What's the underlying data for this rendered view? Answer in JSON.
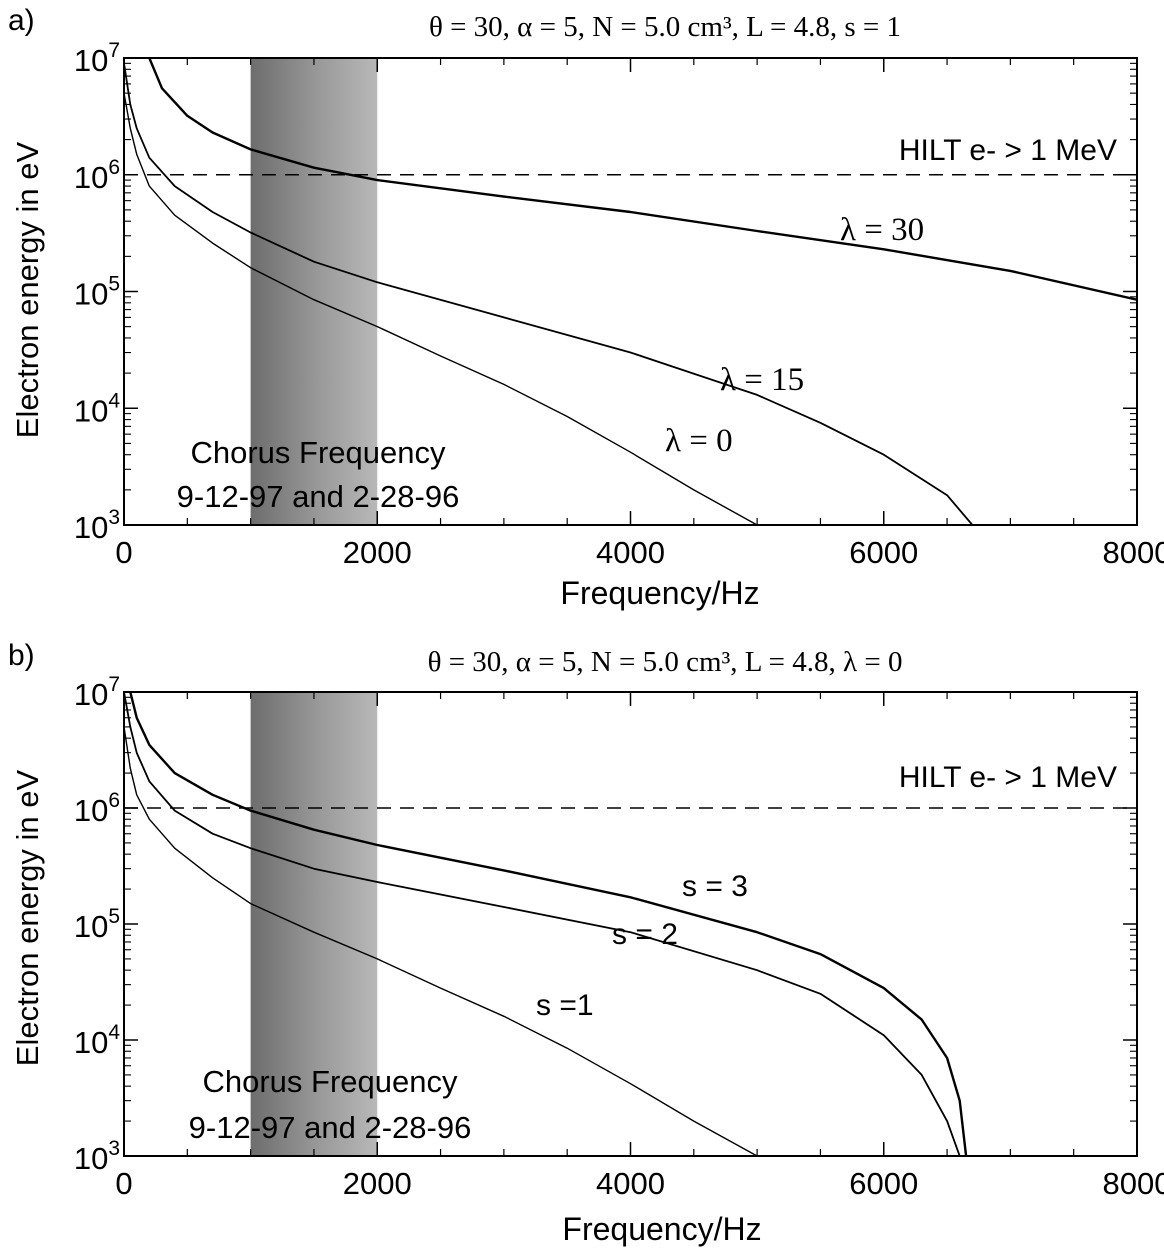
{
  "chart_data": [
    {
      "panel_label": "a)",
      "type": "line",
      "title": "θ = 30, α = 5, N = 5.0 cm³, L = 4.8, s = 1",
      "xlabel": "Frequency/Hz",
      "ylabel": "Electron energy in eV",
      "xlim": [
        0,
        8000
      ],
      "ylim": [
        1000,
        10000000
      ],
      "yscale": "log",
      "xticks": [
        "0",
        "2000",
        "4000",
        "6000",
        "8000"
      ],
      "yticks": [
        {
          "base": "10",
          "exp": "3"
        },
        {
          "base": "10",
          "exp": "4"
        },
        {
          "base": "10",
          "exp": "5"
        },
        {
          "base": "10",
          "exp": "6"
        },
        {
          "base": "10",
          "exp": "7"
        }
      ],
      "shaded_band": {
        "x": [
          1000,
          2000
        ],
        "label": [
          "Chorus Frequency",
          "9-12-97 and 2-28-96"
        ]
      },
      "reference_line": {
        "y": 1000000,
        "label": "HILT e- > 1 MeV"
      },
      "series": [
        {
          "name": "λ = 0",
          "x": [
            0,
            50,
            100,
            200,
            400,
            700,
            1000,
            1500,
            2000,
            2500,
            3000,
            3500,
            4000,
            4500,
            5000
          ],
          "y": [
            5000000,
            2500000,
            1500000,
            800000,
            450000,
            260000,
            160000,
            85000,
            50000,
            28000,
            16000,
            8500,
            4200,
            2000,
            1000
          ]
        },
        {
          "name": "λ = 15",
          "x": [
            0,
            50,
            100,
            200,
            400,
            700,
            1000,
            1500,
            2000,
            3000,
            4000,
            5000,
            5500,
            6000,
            6500,
            6700
          ],
          "y": [
            9000000,
            4000000,
            2500000,
            1400000,
            800000,
            480000,
            320000,
            180000,
            120000,
            60000,
            30000,
            13000,
            7500,
            4000,
            1800,
            1000
          ]
        },
        {
          "name": "λ = 30",
          "x": [
            200,
            300,
            500,
            700,
            1000,
            1500,
            2000,
            3000,
            4000,
            5000,
            6000,
            7000,
            8000
          ],
          "y": [
            10000000,
            5500000,
            3200000,
            2300000,
            1650000,
            1150000,
            900000,
            650000,
            480000,
            330000,
            230000,
            150000,
            85000
          ]
        }
      ],
      "annotations": [
        "λ = 30",
        "λ = 15",
        "λ = 0"
      ]
    },
    {
      "panel_label": "b)",
      "type": "line",
      "title": "θ = 30, α = 5, N = 5.0 cm³, L = 4.8, λ = 0",
      "xlabel": "Frequency/Hz",
      "ylabel": "Electron energy in eV",
      "xlim": [
        0,
        8000
      ],
      "ylim": [
        1000,
        10000000
      ],
      "yscale": "log",
      "xticks": [
        "0",
        "2000",
        "4000",
        "6000",
        "8000"
      ],
      "yticks": [
        {
          "base": "10",
          "exp": "3"
        },
        {
          "base": "10",
          "exp": "4"
        },
        {
          "base": "10",
          "exp": "5"
        },
        {
          "base": "10",
          "exp": "6"
        },
        {
          "base": "10",
          "exp": "7"
        }
      ],
      "shaded_band": {
        "x": [
          1000,
          2000
        ],
        "label": [
          "Chorus Frequency",
          "9-12-97 and 2-28-96"
        ]
      },
      "reference_line": {
        "y": 1000000,
        "label": "HILT e- > 1 MeV"
      },
      "series": [
        {
          "name": "s =1",
          "x": [
            0,
            50,
            100,
            200,
            400,
            700,
            1000,
            1500,
            2000,
            2500,
            3000,
            3500,
            4000,
            4500,
            5000
          ],
          "y": [
            5000000,
            2200000,
            1300000,
            800000,
            450000,
            250000,
            150000,
            85000,
            50000,
            28000,
            16000,
            8500,
            4200,
            2000,
            1000
          ]
        },
        {
          "name": "s = 2",
          "x": [
            0,
            50,
            100,
            200,
            400,
            700,
            1000,
            1500,
            2000,
            3000,
            4000,
            5000,
            5500,
            6000,
            6300,
            6500,
            6600
          ],
          "y": [
            10000000,
            5000000,
            3000000,
            1700000,
            950000,
            600000,
            450000,
            300000,
            230000,
            140000,
            85000,
            40000,
            25000,
            11000,
            5000,
            2000,
            1000
          ]
        },
        {
          "name": "s = 3",
          "x": [
            50,
            100,
            200,
            400,
            700,
            1000,
            1500,
            2000,
            3000,
            4000,
            5000,
            5500,
            6000,
            6300,
            6500,
            6600,
            6650
          ],
          "y": [
            10000000,
            6000000,
            3500000,
            2000000,
            1300000,
            950000,
            650000,
            480000,
            290000,
            170000,
            85000,
            55000,
            28000,
            15000,
            7000,
            3000,
            1000
          ]
        }
      ],
      "annotations": [
        "s = 3",
        "s = 2",
        "s =1"
      ]
    }
  ]
}
